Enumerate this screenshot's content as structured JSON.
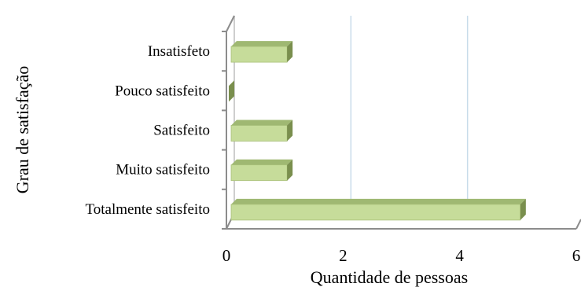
{
  "chart_data": {
    "type": "bar",
    "orientation": "horizontal",
    "style": "3d",
    "categories": [
      "Totalmente satisfeito",
      "Muito satisfeito",
      "Satisfeito",
      "Pouco satisfeito",
      "Insatisfeto"
    ],
    "values": [
      5,
      1,
      1,
      0,
      1
    ],
    "xlabel": "Quantidade de pessoas",
    "ylabel": "Grau de satisfação",
    "xlim": [
      0,
      6
    ],
    "xticks": [
      "0",
      "2",
      "4",
      "6"
    ],
    "grid": "vertical",
    "legend": "none",
    "colors": {
      "bar_front": "#c6dc9a",
      "bar_side": "#7a8f4e",
      "bar_top": "#9fb872",
      "grid": "#c8dcea",
      "axis": "#8c8c8c"
    }
  }
}
